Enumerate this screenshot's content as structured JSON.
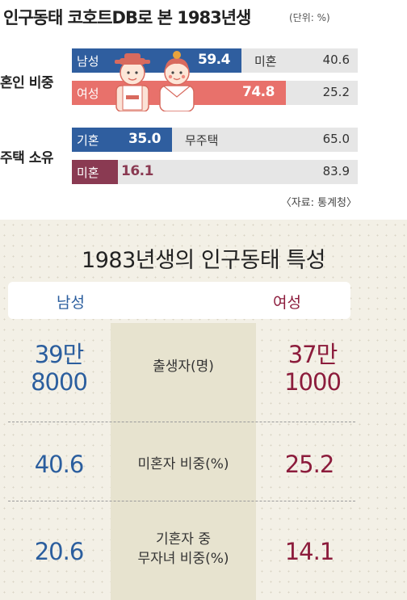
{
  "top": {
    "title": "인구동태 코호트DB로 본 1983년생",
    "unit": "(단위: %)",
    "source": "〈자료: 통계청〉"
  },
  "chart_data": [
    {
      "type": "bar",
      "orientation": "horizontal",
      "stacked": true,
      "xlim": [
        0,
        100
      ],
      "groups": [
        {
          "label": "혼인 비중",
          "rows": [
            {
              "category": "남성",
              "value": 59.4,
              "rest_label": "미혼",
              "rest_value": 40.6
            },
            {
              "category": "여성",
              "value": 74.8,
              "rest_label": "",
              "rest_value": 25.2
            }
          ]
        },
        {
          "label": "주택 소유",
          "rows": [
            {
              "category": "기혼",
              "value": 35.0,
              "value_text": "35.0",
              "rest_label": "무주택",
              "rest_value": 65.0,
              "rest_value_text": "65.0"
            },
            {
              "category": "미혼",
              "value": 16.1,
              "rest_label": "",
              "rest_value": 83.9
            }
          ]
        }
      ],
      "colors": {
        "남성": "#2f5e9f",
        "여성": "#e8716b",
        "기혼": "#2f5e9f",
        "미혼": "#8a3a52",
        "rest": "#e6e6e6"
      }
    },
    {
      "type": "table",
      "title": "1983년생의 인구동태 특성",
      "columns": [
        "남성",
        "",
        "여성"
      ],
      "rows": [
        {
          "label": "출생자(명)",
          "male": [
            "39만",
            "8000"
          ],
          "female": [
            "37만",
            "1000"
          ]
        },
        {
          "label": "미혼자 비중(%)",
          "male": [
            "40.6"
          ],
          "female": [
            "25.2"
          ]
        },
        {
          "label_lines": [
            "기혼자 중",
            "무자녀 비중(%)"
          ],
          "male": [
            "20.6"
          ],
          "female": [
            "14.1"
          ]
        }
      ],
      "colors": {
        "male": "#2b5e9e",
        "female": "#8c1c3c",
        "center_band": "#e7e3cf"
      }
    }
  ]
}
